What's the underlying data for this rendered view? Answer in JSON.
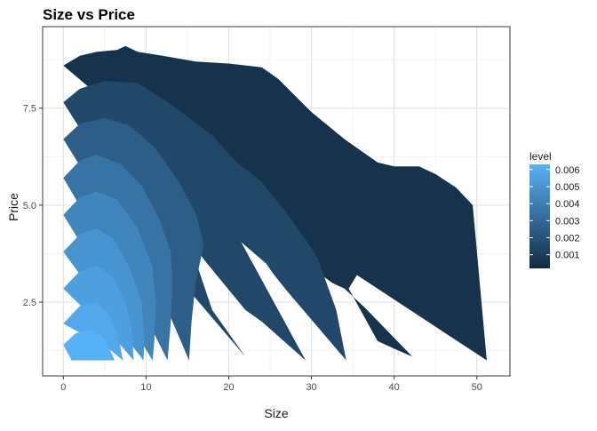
{
  "chart_data": {
    "type": "area",
    "title": "Size vs Price",
    "xlabel": "Size",
    "ylabel": "Price",
    "xlim": [
      -2.5,
      54
    ],
    "ylim": [
      0.6,
      9.6
    ],
    "x_ticks": [
      0,
      10,
      20,
      30,
      40,
      50
    ],
    "y_ticks": [
      2.5,
      5.0,
      7.5
    ],
    "y_tick_labels": [
      "2.5",
      "5.0",
      "7.5"
    ],
    "grid": true,
    "legend": {
      "title": "level",
      "position": "right",
      "min": 0.0002,
      "max": 0.0063,
      "ticks": [
        0.001,
        0.002,
        0.003,
        0.004,
        0.005,
        0.006
      ],
      "tick_labels": [
        "0.001",
        "0.002",
        "0.003",
        "0.004",
        "0.005",
        "0.006"
      ],
      "color_low": "#132B43",
      "color_high": "#56B1F7"
    },
    "series": [
      {
        "level": 0.0005,
        "points": [
          [
            0.0,
            8.6
          ],
          [
            2,
            8.85
          ],
          [
            4,
            8.95
          ],
          [
            6.5,
            9.0
          ],
          [
            7.5,
            9.1
          ],
          [
            9,
            8.95
          ],
          [
            12,
            8.85
          ],
          [
            16,
            8.7
          ],
          [
            20,
            8.65
          ],
          [
            24,
            8.55
          ],
          [
            26,
            8.25
          ],
          [
            30,
            7.4
          ],
          [
            34,
            6.7
          ],
          [
            38,
            6.1
          ],
          [
            40,
            6.0
          ],
          [
            43,
            6.0
          ],
          [
            45,
            5.8
          ],
          [
            47.5,
            5.45
          ],
          [
            49.5,
            5.0
          ],
          [
            51.2,
            1.0
          ],
          [
            35.5,
            3.2
          ],
          [
            34.5,
            2.85
          ],
          [
            38,
            1.5
          ],
          [
            40,
            1.3
          ],
          [
            42.2,
            1.1
          ],
          [
            36.5,
            2.35
          ],
          [
            34,
            2.85
          ],
          [
            32.5,
            3.0
          ],
          [
            20.5,
            4.9
          ],
          [
            0.0,
            8.6
          ]
        ]
      },
      {
        "level": 0.0015,
        "points": [
          [
            0.0,
            7.65
          ],
          [
            2,
            8.0
          ],
          [
            5,
            8.2
          ],
          [
            9,
            8.15
          ],
          [
            13,
            7.6
          ],
          [
            18,
            6.8
          ],
          [
            21,
            6.1
          ],
          [
            24,
            5.6
          ],
          [
            27,
            4.8
          ],
          [
            30,
            3.9
          ],
          [
            30.8,
            3.6
          ],
          [
            33,
            2.3
          ],
          [
            34.2,
            1.0
          ],
          [
            27,
            2.8
          ],
          [
            25.5,
            3.2
          ],
          [
            24.5,
            3.5
          ],
          [
            21.5,
            4.05
          ],
          [
            29.3,
            1.0
          ],
          [
            24,
            2.0
          ],
          [
            22,
            2.3
          ],
          [
            17,
            3.6
          ],
          [
            15,
            4.2
          ],
          [
            18,
            2.3
          ],
          [
            22,
            1.1
          ],
          [
            12,
            3.6
          ],
          [
            0.0,
            7.65
          ]
        ]
      },
      {
        "level": 0.0025,
        "points": [
          [
            0.0,
            6.7
          ],
          [
            2,
            7.1
          ],
          [
            5,
            7.25
          ],
          [
            8,
            7.05
          ],
          [
            11,
            6.5
          ],
          [
            14,
            5.6
          ],
          [
            16,
            4.8
          ],
          [
            17,
            4.0
          ],
          [
            16,
            3.0
          ],
          [
            15.5,
            2.0
          ],
          [
            15.2,
            1.0
          ],
          [
            12,
            2.6
          ],
          [
            0.0,
            6.7
          ]
        ]
      },
      {
        "level": 0.0035,
        "points": [
          [
            0.0,
            5.7
          ],
          [
            2,
            6.15
          ],
          [
            4,
            6.3
          ],
          [
            7,
            6.05
          ],
          [
            9.5,
            5.5
          ],
          [
            11.5,
            4.7
          ],
          [
            13,
            3.8
          ],
          [
            13.2,
            3.0
          ],
          [
            13.0,
            2.0
          ],
          [
            12.6,
            1.0
          ],
          [
            10,
            2.1
          ],
          [
            0.0,
            5.7
          ]
        ]
      },
      {
        "level": 0.0043,
        "points": [
          [
            0.0,
            4.75
          ],
          [
            2,
            5.2
          ],
          [
            4,
            5.35
          ],
          [
            6.5,
            5.15
          ],
          [
            9,
            4.4
          ],
          [
            10.8,
            3.4
          ],
          [
            11.2,
            2.5
          ],
          [
            11.0,
            1.5
          ],
          [
            10.8,
            1.0
          ],
          [
            8.5,
            1.8
          ],
          [
            0.0,
            4.75
          ]
        ]
      },
      {
        "level": 0.005,
        "points": [
          [
            0.0,
            3.8
          ],
          [
            2,
            4.25
          ],
          [
            4,
            4.4
          ],
          [
            6,
            4.15
          ],
          [
            8,
            3.4
          ],
          [
            9.5,
            2.5
          ],
          [
            9.8,
            1.6
          ],
          [
            9.7,
            1.0
          ],
          [
            7.5,
            1.6
          ],
          [
            0.0,
            3.8
          ]
        ]
      },
      {
        "level": 0.0055,
        "points": [
          [
            0.0,
            2.85
          ],
          [
            2,
            3.3
          ],
          [
            4,
            3.45
          ],
          [
            6,
            3.15
          ],
          [
            7.5,
            2.5
          ],
          [
            8.3,
            1.8
          ],
          [
            8.5,
            1.0
          ],
          [
            6.5,
            1.5
          ],
          [
            0.0,
            2.85
          ]
        ]
      },
      {
        "level": 0.0059,
        "points": [
          [
            0.0,
            1.95
          ],
          [
            2,
            2.4
          ],
          [
            4,
            2.5
          ],
          [
            5.5,
            2.2
          ],
          [
            6.7,
            1.6
          ],
          [
            7.2,
            1.0
          ],
          [
            5.5,
            1.3
          ],
          [
            0.0,
            1.95
          ]
        ]
      },
      {
        "level": 0.0063,
        "points": [
          [
            0.0,
            1.4
          ],
          [
            1.5,
            1.7
          ],
          [
            3.5,
            1.8
          ],
          [
            5,
            1.55
          ],
          [
            5.8,
            1.2
          ],
          [
            6.2,
            1.0
          ],
          [
            1,
            1.0
          ],
          [
            0.0,
            1.4
          ]
        ]
      }
    ]
  }
}
